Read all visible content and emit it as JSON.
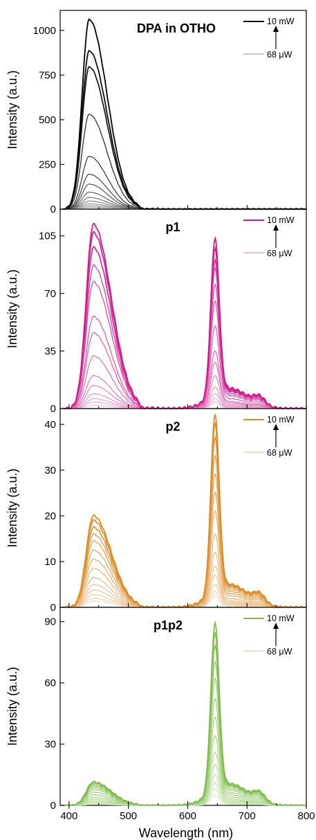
{
  "chart_data": [
    {
      "type": "line",
      "title": "DPA in OTHO",
      "xlabel": "Wavelength (nm)",
      "ylabel": "Intensity (a.u.)",
      "xlim": [
        385,
        800
      ],
      "ylim": [
        0,
        1100
      ],
      "yticks": [
        0,
        250,
        500,
        750,
        1000
      ],
      "color_strong": "#000000",
      "color_weak": "#c8c8c8",
      "legend": {
        "placement": "top-right",
        "high_label": "10 mW",
        "low_label": "68 μW"
      },
      "series_peaks": {
        "peak1_nm": 434,
        "peak1_heights": [
          1060,
          885,
          795,
          530,
          295,
          195,
          140,
          95,
          65,
          45,
          30,
          20,
          12,
          8
        ],
        "peak2_nm": 646,
        "peak2_heights": [
          0,
          0,
          0,
          0,
          0,
          0,
          0,
          0,
          0,
          0,
          0,
          0,
          0,
          0
        ]
      }
    },
    {
      "type": "line",
      "title": "p1",
      "xlabel": "Wavelength (nm)",
      "ylabel": "Intensity (a.u.)",
      "xlim": [
        385,
        800
      ],
      "ylim": [
        0,
        120
      ],
      "yticks": [
        0,
        35,
        70,
        105
      ],
      "color_strong": "#d6168c",
      "color_weak": "#f4bfdd",
      "legend": {
        "placement": "top-right",
        "high_label": "10 mW",
        "low_label": "68 μW"
      },
      "series_peaks": {
        "peak1_nm": 441,
        "peak1_heights": [
          112,
          107,
          98,
          87,
          77,
          56,
          46,
          32,
          20,
          14,
          9,
          6,
          4,
          2
        ],
        "peak2_nm": 646,
        "peak2_heights": [
          103,
          97,
          90,
          85,
          75,
          65,
          50,
          35,
          28,
          20,
          13,
          9,
          6,
          4
        ]
      }
    },
    {
      "type": "line",
      "title": "p2",
      "xlabel": "Wavelength (nm)",
      "ylabel": "Intensity (a.u.)",
      "xlim": [
        385,
        800
      ],
      "ylim": [
        0,
        43
      ],
      "yticks": [
        0,
        10,
        20,
        30,
        40
      ],
      "color_strong": "#e08a22",
      "color_weak": "#f6dcbf",
      "legend": {
        "placement": "top-right",
        "high_label": "10 mW",
        "low_label": "68 μW"
      },
      "series_peaks": {
        "peak1_nm": 441,
        "peak1_heights": [
          20,
          19,
          17.5,
          16,
          14.5,
          12.5,
          10.5,
          8.5,
          6.5,
          5,
          3.8,
          2.8,
          2,
          1.4
        ],
        "peak2_nm": 646,
        "peak2_heights": [
          42,
          40,
          37,
          33,
          29,
          25,
          21,
          16,
          12,
          9,
          7,
          5,
          3.5,
          2.5
        ]
      }
    },
    {
      "type": "line",
      "title": "p1p2",
      "xlabel": "Wavelength (nm)",
      "ylabel": "Intensity (a.u.)",
      "xlim": [
        385,
        800
      ],
      "ylim": [
        0,
        96
      ],
      "yticks": [
        0,
        30,
        60,
        90
      ],
      "xticks": [
        400,
        500,
        600,
        700,
        800
      ],
      "color_strong": "#7fbd4c",
      "color_weak": "#d7eec5",
      "legend": {
        "placement": "top-right",
        "high_label": "10 mW",
        "low_label": "68 μW"
      },
      "series_peaks": {
        "peak1_nm": 441,
        "peak1_heights": [
          11.5,
          10.8,
          9.8,
          8.8,
          7.8,
          6.5,
          5.2,
          4,
          3,
          2.2,
          1.6,
          1.1,
          0.8,
          0.5
        ],
        "peak2_nm": 646,
        "peak2_heights": [
          89,
          84,
          78,
          70,
          62,
          52,
          43,
          34,
          26,
          20,
          15,
          11,
          8,
          5
        ]
      }
    }
  ]
}
